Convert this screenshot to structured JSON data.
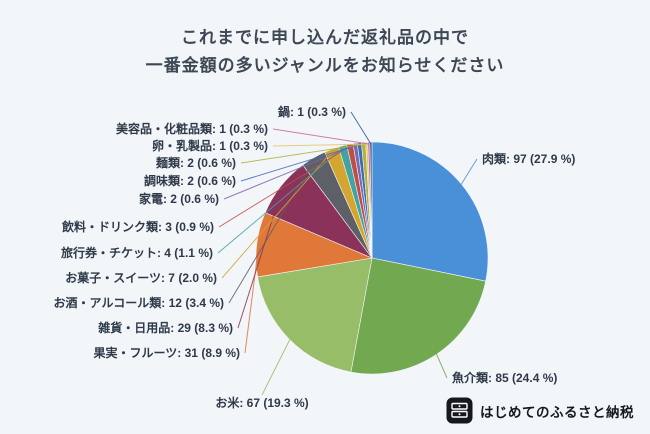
{
  "title": {
    "line1": "これまでに申し込んだ返礼品の中で",
    "line2": "一番金額の多いジャンルをお知らせください"
  },
  "logo": {
    "text": "はじめてのふるさと納税"
  },
  "chart_data": {
    "type": "pie",
    "title": "これまでに申し込んだ返礼品の中で一番金額の多いジャンルをお知らせください",
    "start_angle": "top",
    "direction": "clockwise",
    "label_format": "{label}: {value} ({pct} %)",
    "slices": [
      {
        "label": "肉類",
        "value": 97,
        "pct": "27.9",
        "color": "#4a90d9"
      },
      {
        "label": "魚介類",
        "value": 85,
        "pct": "24.4",
        "color": "#72a84f"
      },
      {
        "label": "お米",
        "value": 67,
        "pct": "19.3",
        "color": "#97bd68"
      },
      {
        "label": "果実・フルーツ",
        "value": 31,
        "pct": "8.9",
        "color": "#e0783a"
      },
      {
        "label": "雑貨・日用品",
        "value": 29,
        "pct": "8.3",
        "color": "#8a3259"
      },
      {
        "label": "お酒・アルコール類",
        "value": 12,
        "pct": "3.4",
        "color": "#5d6066"
      },
      {
        "label": "お菓子・スイーツ",
        "value": 7,
        "pct": "2.0",
        "color": "#d3a62f"
      },
      {
        "label": "旅行券・チケット",
        "value": 4,
        "pct": "1.1",
        "color": "#43a3a3"
      },
      {
        "label": "飲料・ドリンク類",
        "value": 3,
        "pct": "0.9",
        "color": "#bf4e49"
      },
      {
        "label": "家電",
        "value": 2,
        "pct": "0.6",
        "color": "#7a67ad"
      },
      {
        "label": "調味類",
        "value": 2,
        "pct": "0.6",
        "color": "#3e6cb3"
      },
      {
        "label": "麺類",
        "value": 2,
        "pct": "0.6",
        "color": "#b0b23b"
      },
      {
        "label": "卵・乳製品",
        "value": 1,
        "pct": "0.3",
        "color": "#e3c469"
      },
      {
        "label": "美容品・化粧品類",
        "value": 1,
        "pct": "0.3",
        "color": "#c9699d"
      },
      {
        "label": "鍋",
        "value": 1,
        "pct": "0.3",
        "color": "#2c5d8f"
      }
    ]
  }
}
